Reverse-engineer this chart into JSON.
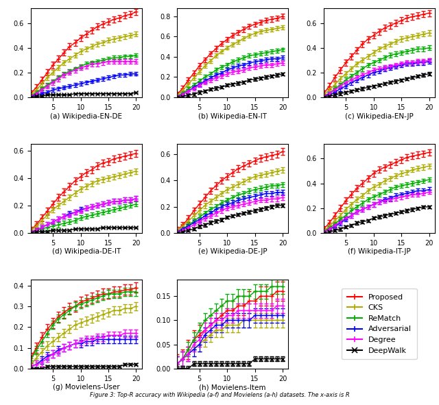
{
  "x": [
    1,
    2,
    3,
    4,
    5,
    6,
    7,
    8,
    9,
    10,
    11,
    12,
    13,
    14,
    15,
    16,
    17,
    18,
    19,
    20
  ],
  "methods": [
    "Proposed",
    "CKS",
    "ReMatch",
    "Adversarial",
    "Degree",
    "DeepWalk"
  ],
  "colors": [
    "#ff0000",
    "#aaaa00",
    "#00aa00",
    "#0000ff",
    "#ff00ff",
    "#000000"
  ],
  "markers": [
    "+",
    "+",
    "+",
    "+",
    "+",
    "x"
  ],
  "subplots": [
    {
      "title": "(a) Wikipedia-EN-DE",
      "ylim": [
        0,
        0.72
      ],
      "yticks": [
        0.0,
        0.2,
        0.4,
        0.6
      ],
      "curves": [
        [
          0.03,
          0.08,
          0.14,
          0.2,
          0.26,
          0.31,
          0.36,
          0.41,
          0.44,
          0.48,
          0.51,
          0.54,
          0.57,
          0.59,
          0.61,
          0.63,
          0.64,
          0.66,
          0.67,
          0.69
        ],
        [
          0.02,
          0.06,
          0.11,
          0.16,
          0.2,
          0.24,
          0.28,
          0.31,
          0.34,
          0.37,
          0.39,
          0.41,
          0.43,
          0.44,
          0.46,
          0.47,
          0.48,
          0.49,
          0.5,
          0.51
        ],
        [
          0.01,
          0.04,
          0.07,
          0.1,
          0.13,
          0.16,
          0.19,
          0.21,
          0.23,
          0.25,
          0.27,
          0.28,
          0.29,
          0.3,
          0.31,
          0.32,
          0.32,
          0.33,
          0.33,
          0.34
        ],
        [
          0.01,
          0.02,
          0.03,
          0.04,
          0.06,
          0.07,
          0.08,
          0.09,
          0.1,
          0.11,
          0.12,
          0.13,
          0.14,
          0.15,
          0.16,
          0.17,
          0.18,
          0.18,
          0.19,
          0.19
        ],
        [
          0.01,
          0.03,
          0.06,
          0.09,
          0.12,
          0.15,
          0.18,
          0.2,
          0.22,
          0.24,
          0.25,
          0.27,
          0.27,
          0.28,
          0.29,
          0.29,
          0.29,
          0.29,
          0.29,
          0.29
        ],
        [
          0.0,
          0.01,
          0.01,
          0.02,
          0.02,
          0.02,
          0.02,
          0.02,
          0.03,
          0.03,
          0.03,
          0.03,
          0.03,
          0.03,
          0.03,
          0.03,
          0.03,
          0.03,
          0.03,
          0.04
        ]
      ],
      "errors": [
        0.025,
        0.02,
        0.015,
        0.015,
        0.02,
        0.005
      ]
    },
    {
      "title": "(b) Wikipedia-EN-IT",
      "ylim": [
        0,
        0.88
      ],
      "yticks": [
        0.0,
        0.2,
        0.4,
        0.6,
        0.8
      ],
      "curves": [
        [
          0.03,
          0.09,
          0.17,
          0.24,
          0.31,
          0.37,
          0.43,
          0.48,
          0.53,
          0.57,
          0.61,
          0.64,
          0.67,
          0.7,
          0.72,
          0.74,
          0.76,
          0.77,
          0.78,
          0.8
        ],
        [
          0.02,
          0.07,
          0.13,
          0.19,
          0.25,
          0.31,
          0.36,
          0.41,
          0.45,
          0.49,
          0.52,
          0.55,
          0.58,
          0.61,
          0.63,
          0.65,
          0.66,
          0.67,
          0.68,
          0.69
        ],
        [
          0.01,
          0.04,
          0.08,
          0.12,
          0.16,
          0.2,
          0.23,
          0.27,
          0.3,
          0.32,
          0.35,
          0.37,
          0.39,
          0.41,
          0.42,
          0.43,
          0.44,
          0.45,
          0.46,
          0.47
        ],
        [
          0.01,
          0.03,
          0.06,
          0.1,
          0.13,
          0.16,
          0.19,
          0.22,
          0.24,
          0.27,
          0.29,
          0.31,
          0.32,
          0.34,
          0.35,
          0.36,
          0.37,
          0.38,
          0.38,
          0.39
        ],
        [
          0.01,
          0.03,
          0.06,
          0.09,
          0.12,
          0.15,
          0.17,
          0.19,
          0.21,
          0.23,
          0.25,
          0.26,
          0.27,
          0.29,
          0.3,
          0.31,
          0.32,
          0.32,
          0.33,
          0.34
        ],
        [
          0.0,
          0.01,
          0.02,
          0.03,
          0.05,
          0.06,
          0.08,
          0.09,
          0.1,
          0.12,
          0.13,
          0.14,
          0.15,
          0.17,
          0.18,
          0.19,
          0.2,
          0.21,
          0.22,
          0.23
        ]
      ],
      "errors": [
        0.025,
        0.02,
        0.02,
        0.02,
        0.02,
        0.015
      ]
    },
    {
      "title": "(c) Wikipedia-EN-JP",
      "ylim": [
        0,
        0.72
      ],
      "yticks": [
        0.0,
        0.2,
        0.4,
        0.6
      ],
      "curves": [
        [
          0.03,
          0.09,
          0.16,
          0.22,
          0.28,
          0.33,
          0.38,
          0.43,
          0.47,
          0.5,
          0.53,
          0.56,
          0.58,
          0.6,
          0.62,
          0.64,
          0.65,
          0.66,
          0.67,
          0.68
        ],
        [
          0.02,
          0.06,
          0.1,
          0.15,
          0.19,
          0.23,
          0.27,
          0.3,
          0.33,
          0.36,
          0.39,
          0.41,
          0.43,
          0.45,
          0.47,
          0.48,
          0.49,
          0.5,
          0.51,
          0.52
        ],
        [
          0.01,
          0.03,
          0.07,
          0.1,
          0.14,
          0.17,
          0.2,
          0.23,
          0.26,
          0.28,
          0.3,
          0.32,
          0.34,
          0.35,
          0.36,
          0.37,
          0.38,
          0.39,
          0.39,
          0.4
        ],
        [
          0.01,
          0.02,
          0.04,
          0.07,
          0.09,
          0.12,
          0.14,
          0.16,
          0.18,
          0.2,
          0.21,
          0.23,
          0.24,
          0.25,
          0.26,
          0.27,
          0.27,
          0.28,
          0.28,
          0.29
        ],
        [
          0.01,
          0.03,
          0.06,
          0.09,
          0.12,
          0.14,
          0.16,
          0.18,
          0.2,
          0.22,
          0.23,
          0.24,
          0.25,
          0.26,
          0.27,
          0.28,
          0.28,
          0.29,
          0.29,
          0.3
        ],
        [
          0.0,
          0.01,
          0.02,
          0.03,
          0.04,
          0.05,
          0.06,
          0.07,
          0.08,
          0.09,
          0.1,
          0.11,
          0.12,
          0.13,
          0.14,
          0.15,
          0.16,
          0.17,
          0.18,
          0.19
        ]
      ],
      "errors": [
        0.025,
        0.02,
        0.018,
        0.018,
        0.018,
        0.012
      ]
    },
    {
      "title": "(d) Wikipedia-DE-IT",
      "ylim": [
        0,
        0.65
      ],
      "yticks": [
        0.0,
        0.2,
        0.4,
        0.6
      ],
      "curves": [
        [
          0.02,
          0.06,
          0.11,
          0.16,
          0.21,
          0.26,
          0.3,
          0.34,
          0.38,
          0.41,
          0.44,
          0.46,
          0.49,
          0.51,
          0.52,
          0.54,
          0.55,
          0.56,
          0.57,
          0.58
        ],
        [
          0.02,
          0.05,
          0.09,
          0.13,
          0.17,
          0.2,
          0.23,
          0.26,
          0.29,
          0.32,
          0.34,
          0.36,
          0.38,
          0.39,
          0.4,
          0.41,
          0.42,
          0.43,
          0.44,
          0.45
        ],
        [
          0.01,
          0.02,
          0.03,
          0.04,
          0.05,
          0.06,
          0.07,
          0.08,
          0.09,
          0.11,
          0.12,
          0.13,
          0.14,
          0.15,
          0.16,
          0.17,
          0.18,
          0.19,
          0.2,
          0.21
        ],
        [
          0.01,
          0.02,
          0.04,
          0.06,
          0.08,
          0.1,
          0.12,
          0.14,
          0.15,
          0.17,
          0.18,
          0.19,
          0.2,
          0.21,
          0.22,
          0.23,
          0.23,
          0.24,
          0.24,
          0.25
        ],
        [
          0.01,
          0.02,
          0.04,
          0.06,
          0.08,
          0.1,
          0.12,
          0.13,
          0.15,
          0.16,
          0.18,
          0.19,
          0.2,
          0.21,
          0.22,
          0.23,
          0.23,
          0.24,
          0.24,
          0.25
        ],
        [
          0.0,
          0.01,
          0.01,
          0.01,
          0.02,
          0.02,
          0.02,
          0.02,
          0.03,
          0.03,
          0.03,
          0.03,
          0.03,
          0.04,
          0.04,
          0.04,
          0.04,
          0.04,
          0.04,
          0.04
        ]
      ],
      "errors": [
        0.025,
        0.02,
        0.018,
        0.018,
        0.018,
        0.005
      ]
    },
    {
      "title": "(e) Wikipedia-DE-JP",
      "ylim": [
        0,
        0.68
      ],
      "yticks": [
        0.0,
        0.2,
        0.4,
        0.6
      ],
      "curves": [
        [
          0.02,
          0.06,
          0.11,
          0.17,
          0.22,
          0.27,
          0.32,
          0.36,
          0.4,
          0.43,
          0.46,
          0.49,
          0.51,
          0.53,
          0.55,
          0.57,
          0.58,
          0.59,
          0.6,
          0.62
        ],
        [
          0.02,
          0.05,
          0.09,
          0.13,
          0.17,
          0.21,
          0.24,
          0.27,
          0.3,
          0.33,
          0.35,
          0.37,
          0.39,
          0.41,
          0.43,
          0.44,
          0.45,
          0.46,
          0.47,
          0.48
        ],
        [
          0.01,
          0.03,
          0.06,
          0.09,
          0.12,
          0.15,
          0.18,
          0.2,
          0.23,
          0.25,
          0.27,
          0.29,
          0.3,
          0.32,
          0.33,
          0.34,
          0.35,
          0.36,
          0.36,
          0.37
        ],
        [
          0.01,
          0.03,
          0.05,
          0.08,
          0.1,
          0.13,
          0.15,
          0.18,
          0.2,
          0.22,
          0.23,
          0.25,
          0.26,
          0.27,
          0.28,
          0.29,
          0.3,
          0.3,
          0.31,
          0.31
        ],
        [
          0.01,
          0.02,
          0.04,
          0.06,
          0.09,
          0.11,
          0.13,
          0.15,
          0.17,
          0.19,
          0.2,
          0.21,
          0.22,
          0.23,
          0.24,
          0.25,
          0.25,
          0.26,
          0.26,
          0.27
        ],
        [
          0.0,
          0.01,
          0.02,
          0.03,
          0.05,
          0.06,
          0.08,
          0.09,
          0.1,
          0.12,
          0.13,
          0.14,
          0.15,
          0.16,
          0.17,
          0.18,
          0.19,
          0.2,
          0.21,
          0.21
        ]
      ],
      "errors": [
        0.025,
        0.02,
        0.018,
        0.018,
        0.018,
        0.012
      ]
    },
    {
      "title": "(f) Wikipedia-IT-JP",
      "ylim": [
        0,
        0.72
      ],
      "yticks": [
        0.0,
        0.2,
        0.4,
        0.6
      ],
      "curves": [
        [
          0.03,
          0.08,
          0.14,
          0.2,
          0.26,
          0.31,
          0.36,
          0.4,
          0.44,
          0.48,
          0.51,
          0.53,
          0.55,
          0.57,
          0.59,
          0.61,
          0.62,
          0.63,
          0.64,
          0.65
        ],
        [
          0.02,
          0.05,
          0.1,
          0.14,
          0.19,
          0.23,
          0.27,
          0.3,
          0.34,
          0.37,
          0.39,
          0.42,
          0.44,
          0.46,
          0.48,
          0.49,
          0.51,
          0.52,
          0.53,
          0.54
        ],
        [
          0.01,
          0.04,
          0.07,
          0.11,
          0.14,
          0.18,
          0.21,
          0.24,
          0.27,
          0.29,
          0.31,
          0.33,
          0.35,
          0.37,
          0.38,
          0.39,
          0.4,
          0.41,
          0.42,
          0.43
        ],
        [
          0.01,
          0.03,
          0.05,
          0.08,
          0.11,
          0.14,
          0.17,
          0.19,
          0.21,
          0.23,
          0.25,
          0.27,
          0.28,
          0.3,
          0.31,
          0.32,
          0.33,
          0.34,
          0.34,
          0.35
        ],
        [
          0.01,
          0.03,
          0.06,
          0.09,
          0.12,
          0.14,
          0.17,
          0.19,
          0.21,
          0.23,
          0.25,
          0.26,
          0.27,
          0.28,
          0.29,
          0.3,
          0.31,
          0.31,
          0.32,
          0.33
        ],
        [
          0.0,
          0.01,
          0.02,
          0.03,
          0.05,
          0.06,
          0.08,
          0.09,
          0.1,
          0.12,
          0.13,
          0.14,
          0.15,
          0.16,
          0.17,
          0.18,
          0.19,
          0.2,
          0.21,
          0.21
        ]
      ],
      "errors": [
        0.025,
        0.02,
        0.018,
        0.018,
        0.018,
        0.012
      ]
    },
    {
      "title": "(g) Movielens-User",
      "ylim": [
        0,
        0.43
      ],
      "yticks": [
        0.0,
        0.1,
        0.2,
        0.3,
        0.4
      ],
      "curves": [
        [
          0.05,
          0.1,
          0.15,
          0.19,
          0.22,
          0.25,
          0.27,
          0.29,
          0.3,
          0.32,
          0.33,
          0.34,
          0.35,
          0.36,
          0.36,
          0.37,
          0.37,
          0.38,
          0.38,
          0.39
        ],
        [
          0.02,
          0.05,
          0.08,
          0.11,
          0.13,
          0.15,
          0.17,
          0.19,
          0.21,
          0.22,
          0.23,
          0.24,
          0.25,
          0.26,
          0.27,
          0.28,
          0.28,
          0.29,
          0.29,
          0.3
        ],
        [
          0.04,
          0.09,
          0.13,
          0.17,
          0.21,
          0.24,
          0.26,
          0.28,
          0.3,
          0.31,
          0.32,
          0.33,
          0.34,
          0.35,
          0.36,
          0.36,
          0.36,
          0.37,
          0.37,
          0.37
        ],
        [
          0.01,
          0.02,
          0.04,
          0.06,
          0.07,
          0.09,
          0.1,
          0.11,
          0.12,
          0.12,
          0.13,
          0.13,
          0.14,
          0.14,
          0.14,
          0.14,
          0.14,
          0.14,
          0.14,
          0.14
        ],
        [
          0.01,
          0.02,
          0.03,
          0.05,
          0.07,
          0.08,
          0.1,
          0.11,
          0.12,
          0.13,
          0.14,
          0.14,
          0.15,
          0.15,
          0.16,
          0.16,
          0.16,
          0.17,
          0.17,
          0.17
        ],
        [
          0.0,
          0.0,
          0.0,
          0.01,
          0.01,
          0.01,
          0.01,
          0.01,
          0.01,
          0.01,
          0.01,
          0.01,
          0.01,
          0.01,
          0.01,
          0.01,
          0.01,
          0.02,
          0.02,
          0.02
        ]
      ],
      "errors": [
        0.025,
        0.02,
        0.02,
        0.018,
        0.018,
        0.005
      ]
    },
    {
      "title": "(h) Movielens-Item",
      "ylim": [
        0,
        0.185
      ],
      "yticks": [
        0.0,
        0.05,
        0.1,
        0.15
      ],
      "curves": [
        [
          0.01,
          0.02,
          0.04,
          0.06,
          0.07,
          0.08,
          0.09,
          0.1,
          0.11,
          0.12,
          0.12,
          0.13,
          0.13,
          0.14,
          0.14,
          0.15,
          0.15,
          0.15,
          0.16,
          0.16
        ],
        [
          0.01,
          0.02,
          0.03,
          0.04,
          0.05,
          0.06,
          0.07,
          0.08,
          0.08,
          0.09,
          0.09,
          0.09,
          0.1,
          0.1,
          0.1,
          0.1,
          0.1,
          0.1,
          0.1,
          0.1
        ],
        [
          0.01,
          0.02,
          0.04,
          0.06,
          0.08,
          0.1,
          0.11,
          0.12,
          0.13,
          0.14,
          0.14,
          0.15,
          0.15,
          0.15,
          0.16,
          0.16,
          0.16,
          0.17,
          0.17,
          0.17
        ],
        [
          0.01,
          0.02,
          0.03,
          0.04,
          0.05,
          0.07,
          0.08,
          0.09,
          0.09,
          0.1,
          0.1,
          0.1,
          0.1,
          0.1,
          0.11,
          0.11,
          0.11,
          0.11,
          0.11,
          0.11
        ],
        [
          0.01,
          0.02,
          0.03,
          0.05,
          0.06,
          0.08,
          0.09,
          0.1,
          0.1,
          0.11,
          0.11,
          0.12,
          0.12,
          0.12,
          0.12,
          0.12,
          0.12,
          0.12,
          0.13,
          0.13
        ],
        [
          0.0,
          0.0,
          0.0,
          0.01,
          0.01,
          0.01,
          0.01,
          0.01,
          0.01,
          0.01,
          0.01,
          0.01,
          0.01,
          0.01,
          0.02,
          0.02,
          0.02,
          0.02,
          0.02,
          0.02
        ]
      ],
      "errors": [
        0.02,
        0.015,
        0.015,
        0.015,
        0.015,
        0.005
      ]
    }
  ],
  "figsize": [
    6.4,
    5.91
  ],
  "dpi": 100
}
